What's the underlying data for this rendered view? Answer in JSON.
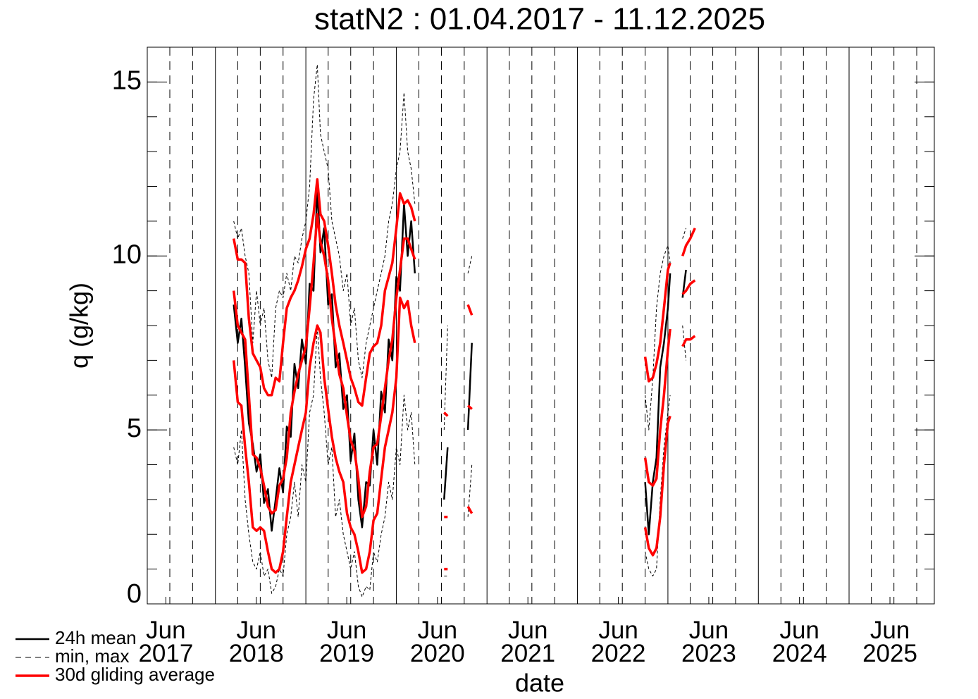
{
  "chart_data": {
    "type": "line",
    "title": "statN2 : 01.04.2017 - 11.12.2025",
    "xlabel": "date",
    "ylabel": "q (g/kg)",
    "xlim": [
      "2017-04-01",
      "2025-12-11"
    ],
    "ylim": [
      0,
      16
    ],
    "yticks": [
      0,
      5,
      10,
      15
    ],
    "yminor": [
      0,
      1,
      2,
      3,
      4,
      5,
      6,
      7,
      8,
      9,
      10,
      11,
      12,
      13,
      14,
      15,
      16
    ],
    "xticks": [
      {
        "value": "2017-06-15",
        "label": "Jun 2017"
      },
      {
        "value": "2018-06-15",
        "label": "Jun 2018"
      },
      {
        "value": "2019-06-15",
        "label": "Jun 2019"
      },
      {
        "value": "2020-06-15",
        "label": "Jun 2020"
      },
      {
        "value": "2021-06-15",
        "label": "Jun 2021"
      },
      {
        "value": "2022-06-15",
        "label": "Jun 2022"
      },
      {
        "value": "2023-06-15",
        "label": "Jun 2023"
      },
      {
        "value": "2024-06-15",
        "label": "Jun 2024"
      },
      {
        "value": "2025-06-15",
        "label": "Jun 2025"
      }
    ],
    "xgrid_solid": [
      "2018-01-01",
      "2019-01-01",
      "2020-01-01",
      "2021-01-01",
      "2022-01-01",
      "2023-01-01",
      "2024-01-01",
      "2025-01-01"
    ],
    "xgrid_dashed": [
      "2017-07-01",
      "2017-10-01",
      "2018-04-01",
      "2018-07-01",
      "2018-10-01",
      "2019-04-01",
      "2019-07-01",
      "2019-10-01",
      "2020-04-01",
      "2020-07-01",
      "2020-10-01",
      "2021-04-01",
      "2021-07-01",
      "2021-10-01",
      "2022-04-01",
      "2022-07-01",
      "2022-10-01",
      "2023-04-01",
      "2023-07-01",
      "2023-10-01",
      "2024-04-01",
      "2024-07-01",
      "2024-10-01",
      "2025-04-01",
      "2025-07-01",
      "2025-10-01"
    ],
    "x": [
      "2018-03-16",
      "2018-04-01",
      "2018-04-16",
      "2018-05-01",
      "2018-05-16",
      "2018-06-01",
      "2018-06-16",
      "2018-07-01",
      "2018-07-16",
      "2018-08-01",
      "2018-08-16",
      "2018-09-01",
      "2018-09-16",
      "2018-10-01",
      "2018-10-16",
      "2018-11-01",
      "2018-11-16",
      "2018-12-01",
      "2018-12-16",
      "2019-01-01",
      "2019-01-16",
      "2019-02-01",
      "2019-02-16",
      "2019-03-01",
      "2019-03-16",
      "2019-04-01",
      "2019-04-16",
      "2019-05-01",
      "2019-05-16",
      "2019-06-01",
      "2019-06-16",
      "2019-07-01",
      "2019-07-16",
      "2019-08-01",
      "2019-08-16",
      "2019-09-01",
      "2019-09-16",
      "2019-10-01",
      "2019-10-16",
      "2019-11-01",
      "2019-11-16",
      "2019-12-01",
      "2019-12-16",
      "2020-01-01",
      "2020-01-16",
      "2020-02-01",
      "2020-02-16",
      "2020-03-01",
      "2020-03-16",
      "2020-04-16",
      "2020-07-12",
      "2020-07-26",
      "2020-08-20",
      "2020-10-16",
      "2020-11-01",
      "2021-06-01",
      "2022-10-01",
      "2022-10-16",
      "2022-11-01",
      "2022-11-16",
      "2022-12-01",
      "2022-12-16",
      "2023-01-01",
      "2023-01-10",
      "2023-01-25",
      "2023-03-01",
      "2023-03-15",
      "2023-04-01",
      "2023-04-20"
    ],
    "series": [
      {
        "name": "24h mean",
        "color": "#000000",
        "width": 2.5,
        "dashed": false,
        "values": [
          8.6,
          7.5,
          8.2,
          6.8,
          5.2,
          4.6,
          3.8,
          4.3,
          2.9,
          3.3,
          2.1,
          3.0,
          3.9,
          3.2,
          5.1,
          4.8,
          6.9,
          6.2,
          7.6,
          6.9,
          9.2,
          9.0,
          12.0,
          10.1,
          10.8,
          8.6,
          8.9,
          6.8,
          7.2,
          5.6,
          6.0,
          4.1,
          4.9,
          3.0,
          2.2,
          3.5,
          3.4,
          5.0,
          4.0,
          6.1,
          5.5,
          7.6,
          7.0,
          9.4,
          9.0,
          11.5,
          10.0,
          11.0,
          9.5,
          null,
          3.0,
          4.5,
          null,
          5.0,
          7.5,
          null,
          3.5,
          2.0,
          3.5,
          4.2,
          6.8,
          7.5,
          8.5,
          9.5,
          null,
          8.8,
          9.6,
          null,
          null
        ]
      },
      {
        "name": "min, max",
        "color": "#000000",
        "width": 1,
        "dashed": true,
        "values": [
          4.5,
          4.0,
          5.0,
          3.0,
          2.0,
          1.2,
          1.0,
          1.5,
          0.8,
          1.0,
          0.3,
          0.5,
          1.0,
          0.8,
          2.0,
          2.5,
          3.5,
          2.5,
          4.0,
          3.5,
          5.5,
          6.0,
          8.0,
          6.5,
          5.5,
          4.0,
          4.5,
          2.5,
          3.0,
          2.0,
          1.5,
          1.0,
          1.5,
          0.5,
          0.2,
          0.5,
          0.4,
          1.5,
          1.2,
          2.0,
          2.5,
          3.5,
          3.0,
          4.5,
          4.0,
          6.0,
          5.0,
          5.5,
          4.0,
          null,
          0.8,
          0.8,
          null,
          2.5,
          4.0,
          null,
          1.5,
          1.0,
          0.8,
          1.0,
          3.0,
          4.5,
          5.5,
          6.0,
          null,
          8.0,
          7.0,
          null,
          null
        ],
        "high": [
          11.0,
          10.5,
          10.8,
          10.0,
          9.5,
          7.5,
          9.0,
          8.0,
          8.5,
          7.0,
          6.5,
          8.5,
          9.0,
          8.8,
          9.5,
          9.0,
          10.0,
          9.8,
          10.5,
          11.0,
          12.0,
          14.5,
          15.5,
          13.5,
          13.0,
          12.5,
          11.0,
          10.5,
          10.0,
          9.0,
          9.5,
          8.0,
          8.5,
          7.0,
          6.5,
          7.5,
          8.0,
          8.5,
          9.0,
          9.5,
          10.0,
          11.0,
          11.5,
          12.5,
          13.0,
          14.7,
          13.0,
          12.5,
          11.5,
          null,
          5.0,
          8.0,
          null,
          9.5,
          10.0,
          null,
          6.0,
          5.0,
          6.5,
          8.5,
          9.5,
          10.0,
          10.3,
          9.8,
          null,
          10.5,
          10.8,
          null,
          null
        ]
      },
      {
        "name": "30d gliding average",
        "color": "#ff0000",
        "width": 3.5,
        "dashed": false,
        "values": [
          9.0,
          8.0,
          7.8,
          7.6,
          6.0,
          4.3,
          4.2,
          3.9,
          3.4,
          2.8,
          2.6,
          2.7,
          3.4,
          3.6,
          4.2,
          5.5,
          6.1,
          6.6,
          7.0,
          7.4,
          8.5,
          9.8,
          11.2,
          10.4,
          10.0,
          9.3,
          8.2,
          7.4,
          6.6,
          6.2,
          5.4,
          4.7,
          4.4,
          3.6,
          2.5,
          2.8,
          3.8,
          4.5,
          4.6,
          5.4,
          6.2,
          7.0,
          7.6,
          8.8,
          9.6,
          10.5,
          10.5,
          10.2,
          9.9,
          null,
          2.5,
          2.5,
          null,
          5.7,
          5.6,
          null,
          4.2,
          3.5,
          3.4,
          3.6,
          5.0,
          6.0,
          7.3,
          7.9,
          null,
          8.9,
          9.0,
          9.2,
          9.3
        ],
        "low": [
          7.0,
          5.8,
          5.7,
          4.5,
          3.5,
          2.2,
          2.1,
          2.2,
          2.1,
          1.5,
          1.0,
          0.9,
          1.0,
          1.5,
          2.5,
          3.5,
          4.0,
          4.5,
          5.0,
          5.5,
          6.8,
          7.5,
          8.0,
          7.8,
          6.5,
          5.6,
          4.8,
          4.2,
          3.8,
          3.5,
          2.6,
          2.2,
          2.0,
          1.5,
          0.9,
          1.0,
          1.5,
          2.4,
          2.6,
          3.6,
          4.5,
          5.0,
          5.5,
          6.5,
          8.8,
          8.5,
          8.7,
          8.0,
          7.5,
          null,
          1.0,
          1.0,
          null,
          2.8,
          2.6,
          null,
          2.2,
          1.6,
          1.4,
          1.6,
          2.5,
          4.0,
          5.2,
          5.4,
          null,
          7.4,
          7.6,
          7.6,
          7.7
        ],
        "high": [
          10.5,
          9.9,
          9.9,
          9.8,
          8.2,
          7.2,
          7.0,
          6.8,
          6.2,
          6.0,
          6.0,
          6.5,
          6.4,
          7.5,
          8.5,
          8.8,
          9.0,
          9.3,
          9.7,
          10.2,
          10.5,
          11.2,
          12.2,
          11.2,
          11.0,
          10.3,
          9.5,
          8.6,
          8.0,
          7.5,
          7.0,
          6.5,
          6.2,
          5.8,
          5.7,
          6.5,
          7.2,
          7.4,
          7.5,
          8.0,
          9.0,
          9.4,
          9.8,
          10.8,
          11.8,
          11.5,
          11.6,
          11.4,
          11.0,
          null,
          5.5,
          5.4,
          null,
          8.6,
          8.3,
          null,
          7.1,
          6.4,
          6.5,
          6.9,
          7.5,
          8.5,
          9.6,
          9.8,
          null,
          10.0,
          10.3,
          10.5,
          10.8
        ]
      }
    ]
  }
}
